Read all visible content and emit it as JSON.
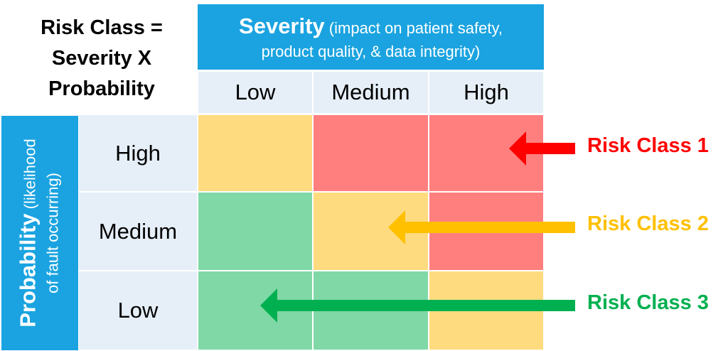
{
  "formula": {
    "line1": "Risk Class =",
    "line2": "Severity X",
    "line3": "Probability"
  },
  "severity": {
    "title": "Severity",
    "subtitle_line1": "(impact on patient safety,",
    "subtitle_line2": "product quality, & data integrity)",
    "levels": [
      "Low",
      "Medium",
      "High"
    ]
  },
  "probability": {
    "title": "Probability",
    "subtitle_line1": "(likelihood",
    "subtitle_line2": "of fault occurring)",
    "levels": [
      "High",
      "Medium",
      "Low"
    ]
  },
  "colors": {
    "header_blue": "#1aa3e0",
    "header_light": "#e6eff8",
    "class1": "#ff7f7f",
    "class2": "#ffdb7f",
    "class3": "#80d8a6",
    "class1_text": "#ff0000",
    "class2_text": "#ffc000",
    "class3_text": "#00b050"
  },
  "matrix": [
    [
      2,
      1,
      1
    ],
    [
      3,
      2,
      1
    ],
    [
      3,
      3,
      2
    ]
  ],
  "risk_classes": [
    {
      "label": "Risk Class 1",
      "class": 1
    },
    {
      "label": "Risk Class 2",
      "class": 2
    },
    {
      "label": "Risk Class 3",
      "class": 3
    }
  ]
}
